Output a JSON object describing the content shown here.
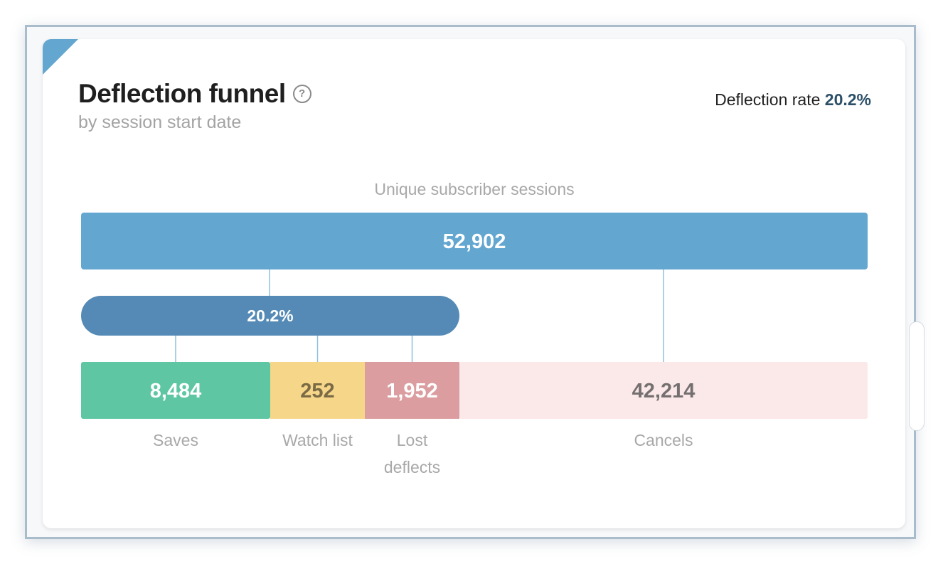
{
  "header": {
    "title": "Deflection funnel",
    "subtitle": "by session start date",
    "help_icon": "question-circle-icon",
    "rate_label": "Deflection rate",
    "rate_value": "20.2%"
  },
  "colors": {
    "corner": "#63a7d1",
    "total_bar": "#63a7d1",
    "deflect_bar": "#548ab5",
    "saves": "#5ec6a3",
    "watch_list": "#f6d78a",
    "lost_deflects": "#db9d9f",
    "cancels": "#fbe8e8",
    "connector": "#8fc1dc"
  },
  "chart_data": {
    "type": "bar",
    "title": "Unique subscriber sessions",
    "total": {
      "value": 52902,
      "label": "52,902"
    },
    "deflection": {
      "percent": 20.2,
      "label": "20.2%"
    },
    "categories": [
      "Saves",
      "Watch list",
      "Lost deflects",
      "Cancels"
    ],
    "values": [
      8484,
      252,
      1952,
      42214
    ],
    "value_labels": [
      "8,484",
      "252",
      "1,952",
      "42,214"
    ],
    "label_lines": [
      [
        "Saves"
      ],
      [
        "Watch list"
      ],
      [
        "Lost",
        "deflects"
      ],
      [
        "Cancels"
      ]
    ],
    "segment_colors": [
      "#5ec6a3",
      "#f6d78a",
      "#db9d9f",
      "#fbe8e8"
    ],
    "value_text_colors": [
      "#ffffff",
      "#7a6a45",
      "#ffffff",
      "#757070"
    ],
    "deflect_group": [
      "Saves",
      "Watch list",
      "Lost deflects"
    ]
  }
}
